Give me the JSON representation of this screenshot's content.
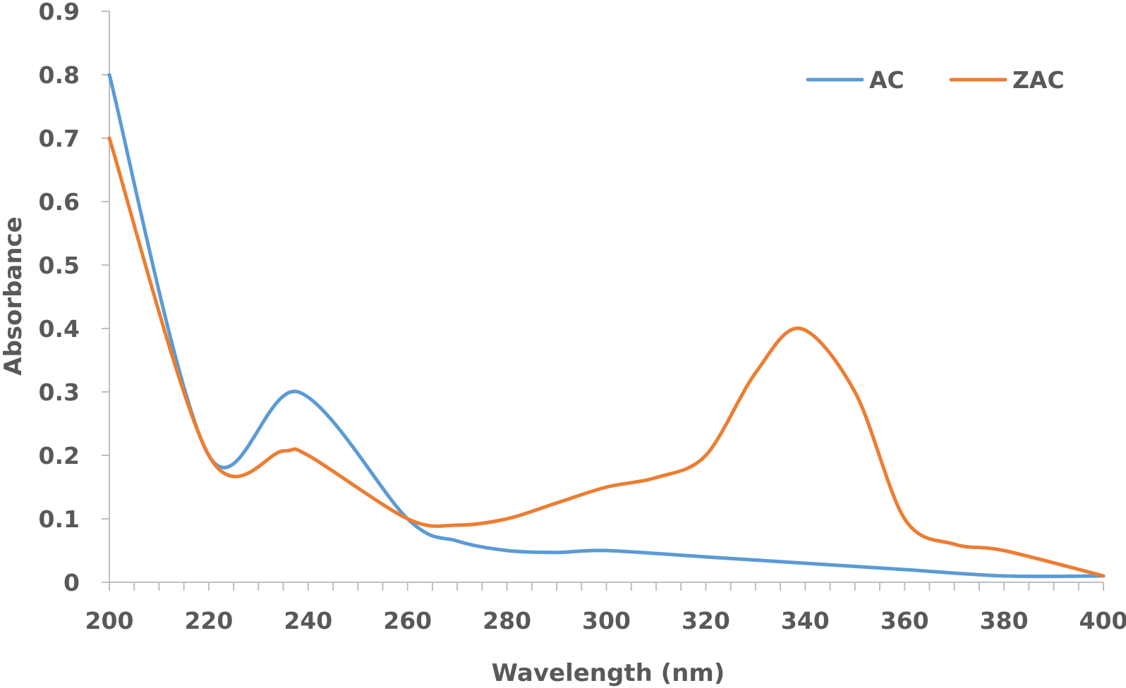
{
  "chart_data": {
    "type": "line",
    "title": "",
    "xlabel": "Wavelength (nm)",
    "ylabel": "Absorbance",
    "xlim": [
      200,
      400
    ],
    "ylim": [
      0,
      0.9
    ],
    "x_ticks": [
      "200",
      "220",
      "240",
      "260",
      "280",
      "300",
      "320",
      "340",
      "360",
      "380",
      "400"
    ],
    "y_ticks": [
      "0",
      "0.1",
      "0.2",
      "0.3",
      "0.4",
      "0.5",
      "0.6",
      "0.7",
      "0.8",
      "0.9"
    ],
    "grid": false,
    "legend_position": "top-right",
    "series": [
      {
        "name": "AC",
        "color": "#5b9bd5",
        "x": [
          200,
          220,
          238,
          260,
          270,
          280,
          290,
          300,
          320,
          340,
          360,
          380,
          400
        ],
        "y": [
          0.8,
          0.2,
          0.3,
          0.1,
          0.065,
          0.05,
          0.047,
          0.05,
          0.04,
          0.03,
          0.02,
          0.01,
          0.01
        ]
      },
      {
        "name": "ZAC",
        "color": "#ed7d31",
        "x": [
          200,
          220,
          235,
          240,
          260,
          270,
          280,
          290,
          300,
          310,
          320,
          330,
          339,
          350,
          360,
          370,
          380,
          400
        ],
        "y": [
          0.7,
          0.2,
          0.207,
          0.2,
          0.1,
          0.09,
          0.1,
          0.125,
          0.15,
          0.165,
          0.2,
          0.33,
          0.4,
          0.3,
          0.1,
          0.06,
          0.05,
          0.01
        ]
      }
    ]
  }
}
